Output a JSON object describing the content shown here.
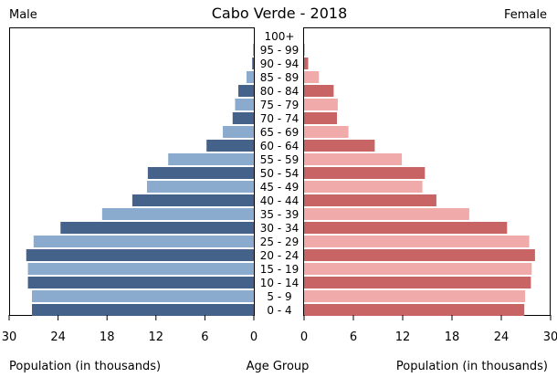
{
  "chart_data": {
    "type": "bar",
    "orientation": "horizontal",
    "layout": "population-pyramid",
    "title": "Cabo Verde - 2018",
    "left_label": "Male",
    "right_label": "Female",
    "center_label": "Age Group",
    "left_axis_label": "Population (in thousands)",
    "right_axis_label": "Population (in thousands)",
    "xlim": [
      0,
      30
    ],
    "ticks": [
      0,
      6,
      12,
      18,
      24,
      30
    ],
    "grid": false,
    "categories": [
      "100+",
      "95 - 99",
      "90 - 94",
      "85 - 89",
      "80 - 84",
      "75 - 79",
      "70 - 74",
      "65 - 69",
      "60 - 64",
      "55 - 59",
      "50 - 54",
      "45 - 49",
      "40 - 44",
      "35 - 39",
      "30 - 34",
      "25 - 29",
      "20 - 24",
      "15 - 19",
      "10 - 14",
      "5 - 9",
      "0 - 4"
    ],
    "series": [
      {
        "name": "Male",
        "colors": [
          "#44628a",
          "#8aabce"
        ],
        "values": [
          0.0,
          0.1,
          0.2,
          0.9,
          1.9,
          2.3,
          2.6,
          3.8,
          5.8,
          10.5,
          13.0,
          13.1,
          14.9,
          18.6,
          23.7,
          27.0,
          27.9,
          27.7,
          27.7,
          27.2,
          27.2
        ]
      },
      {
        "name": "Female",
        "colors": [
          "#c86464",
          "#f0aaaa"
        ],
        "values": [
          0.0,
          0.1,
          0.5,
          1.8,
          3.6,
          4.1,
          4.0,
          5.4,
          8.6,
          11.9,
          14.7,
          14.4,
          16.1,
          20.1,
          24.7,
          27.4,
          28.1,
          27.7,
          27.6,
          26.9,
          26.8
        ]
      }
    ]
  }
}
